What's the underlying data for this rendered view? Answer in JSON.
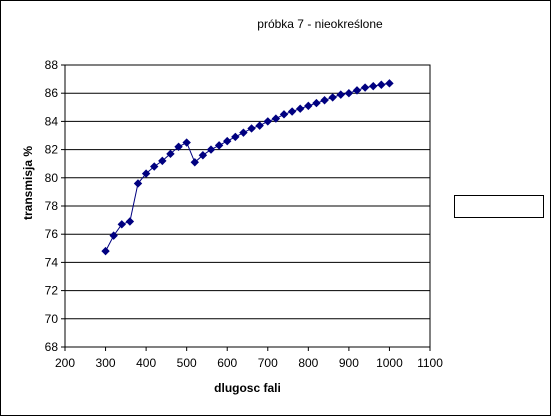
{
  "chart_data": {
    "type": "line",
    "title": "próbka 7 - nieokreślone",
    "xlabel": "dlugosc fali",
    "ylabel": "transmisja %",
    "xlim": [
      200,
      1100
    ],
    "ylim": [
      68,
      88
    ],
    "xticks": [
      200,
      300,
      400,
      500,
      600,
      700,
      800,
      900,
      1000,
      1100
    ],
    "yticks": [
      68,
      70,
      72,
      74,
      76,
      78,
      80,
      82,
      84,
      86,
      88
    ],
    "grid": "horizontal",
    "legend": "right",
    "series_color": "#000080",
    "series": [
      {
        "x": [
          300,
          320,
          340,
          360,
          380,
          400,
          420,
          440,
          460,
          480,
          500,
          520,
          540,
          560,
          580,
          600,
          620,
          640,
          660,
          680,
          700,
          720,
          740,
          760,
          780,
          800,
          820,
          840,
          860,
          880,
          900,
          920,
          940,
          960,
          980,
          1000
        ],
        "y": [
          74.8,
          75.9,
          76.7,
          76.9,
          79.6,
          80.3,
          80.8,
          81.2,
          81.7,
          82.2,
          82.5,
          81.1,
          81.6,
          82.0,
          82.3,
          82.6,
          82.9,
          83.2,
          83.5,
          83.7,
          84.0,
          84.2,
          84.5,
          84.7,
          84.9,
          85.1,
          85.3,
          85.5,
          85.7,
          85.9,
          86.0,
          86.2,
          86.4,
          86.5,
          86.6,
          86.7
        ]
      }
    ]
  }
}
